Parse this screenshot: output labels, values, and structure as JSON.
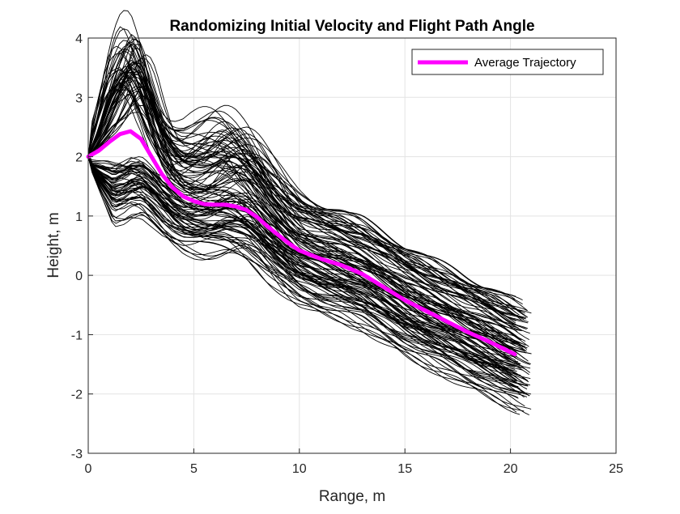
{
  "chart_data": {
    "type": "line",
    "title": "Randomizing Initial Velocity and Flight Path Angle",
    "xlabel": "Range, m",
    "ylabel": "Height, m",
    "xlim": [
      0,
      25
    ],
    "ylim": [
      -3,
      4
    ],
    "xticks": [
      "0",
      "5",
      "10",
      "15",
      "20",
      "25"
    ],
    "yticks": [
      "-3",
      "-2",
      "-1",
      "0",
      "1",
      "2",
      "3",
      "4"
    ],
    "grid": true,
    "legend": {
      "location": "top-right",
      "entries": [
        "Average Trajectory"
      ]
    },
    "series": [
      {
        "name": "Average Trajectory",
        "color": "#ff00ff",
        "x": [
          0,
          0.5,
          1.0,
          1.5,
          2.0,
          2.5,
          3.0,
          3.5,
          4.0,
          4.5,
          5.0,
          5.5,
          6.0,
          6.5,
          7.0,
          7.5,
          8.0,
          8.5,
          9.0,
          9.5,
          10.0,
          11,
          12,
          13,
          14,
          15,
          16,
          17,
          18,
          19,
          20.2
        ],
        "y": [
          2.0,
          2.1,
          2.25,
          2.38,
          2.43,
          2.3,
          2.0,
          1.7,
          1.48,
          1.33,
          1.25,
          1.2,
          1.19,
          1.19,
          1.16,
          1.1,
          0.98,
          0.82,
          0.68,
          0.54,
          0.42,
          0.28,
          0.17,
          0.02,
          -0.2,
          -0.42,
          -0.6,
          -0.78,
          -0.96,
          -1.12,
          -1.33
        ]
      },
      {
        "name": "",
        "role": "monte-carlo-trajectories",
        "color": "#000000",
        "count": 120,
        "x_start": 0,
        "y_start": 2.0,
        "x_end_range": [
          20.2,
          21.0
        ],
        "y_end_range": [
          -2.32,
          -0.85
        ],
        "peak_x": [
          1.2,
          3.0
        ],
        "peak_y_range": [
          1.8,
          3.8
        ]
      }
    ]
  }
}
